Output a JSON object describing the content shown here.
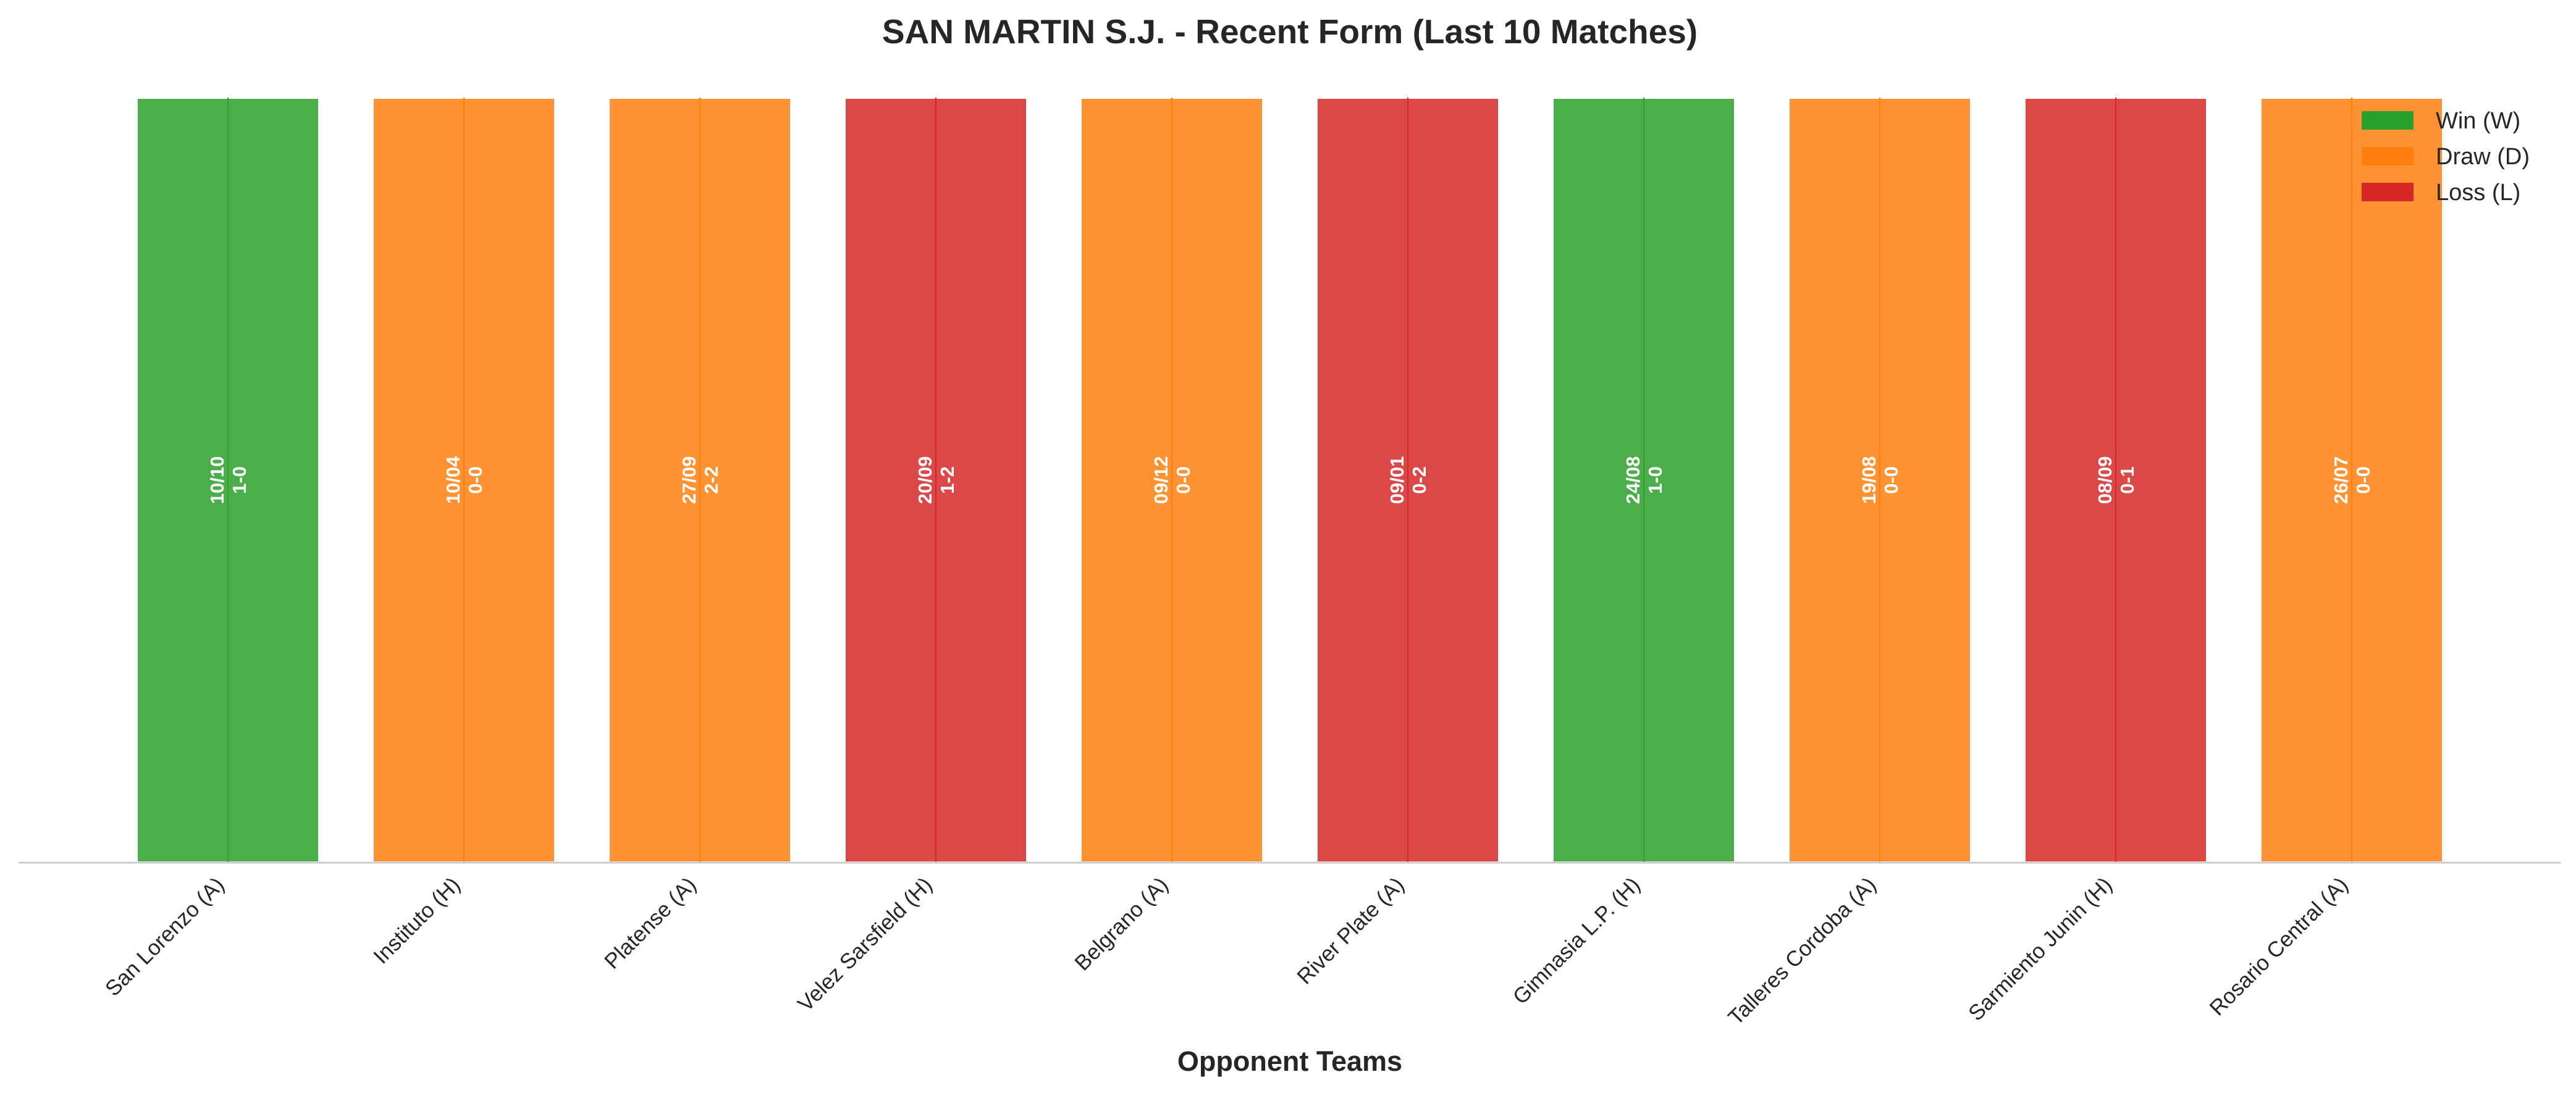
{
  "chart_data": {
    "type": "bar",
    "title": "SAN MARTIN S.J. - Recent Form (Last 10 Matches)",
    "xlabel": "Opponent Teams",
    "ylabel": "",
    "ylim": [
      0,
      1
    ],
    "grid": false,
    "legend_position": "top-right",
    "categories": [
      "San Lorenzo (A)",
      "Instituto (H)",
      "Platense (A)",
      "Velez Sarsfield (H)",
      "Belgrano (A)",
      "River Plate (A)",
      "Gimnasia L.P. (H)",
      "Talleres Cordoba (A)",
      "Sarmiento Junin (H)",
      "Rosario Central (A)"
    ],
    "values": [
      1,
      1,
      1,
      1,
      1,
      1,
      1,
      1,
      1,
      1
    ],
    "results": [
      "W",
      "D",
      "D",
      "L",
      "D",
      "L",
      "W",
      "D",
      "L",
      "D"
    ],
    "dates": [
      "10/10",
      "10/04",
      "27/09",
      "20/09",
      "09/12",
      "09/01",
      "24/08",
      "19/08",
      "08/09",
      "26/07"
    ],
    "scores": [
      "1-0",
      "0-0",
      "2-2",
      "1-2",
      "0-0",
      "0-2",
      "1-0",
      "0-0",
      "0-1",
      "0-0"
    ],
    "legend": [
      {
        "key": "W",
        "label": "Win (W)",
        "color": "#2ca02c"
      },
      {
        "key": "D",
        "label": "Draw (D)",
        "color": "#ff7f0e"
      },
      {
        "key": "L",
        "label": "Loss (L)",
        "color": "#d62728"
      }
    ]
  }
}
